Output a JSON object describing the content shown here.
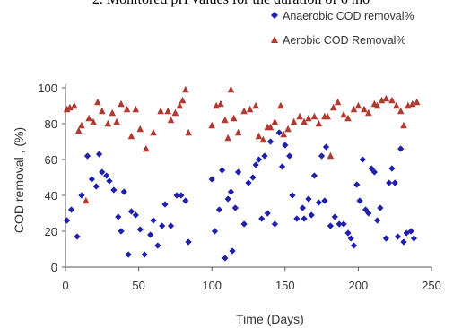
{
  "caption": "2. Monitored pH values for the duration of 6 mo",
  "chart_data": {
    "type": "scatter",
    "xlabel": "Time (Days)",
    "ylabel": "COD removal , (%)",
    "xlim": [
      0,
      250
    ],
    "ylim": [
      0,
      100
    ],
    "xticks": [
      0,
      50,
      100,
      150,
      200,
      250
    ],
    "yticks": [
      0,
      20,
      40,
      60,
      80,
      100
    ],
    "grid": false,
    "legend_position": "top-right",
    "series": [
      {
        "name": "Anaerobic COD removal%",
        "marker": "diamond",
        "color": "#1f1fae",
        "points": [
          [
            1,
            26
          ],
          [
            4,
            32
          ],
          [
            8,
            17
          ],
          [
            11,
            40
          ],
          [
            15,
            62
          ],
          [
            18,
            49
          ],
          [
            21,
            45
          ],
          [
            23,
            63
          ],
          [
            25,
            53
          ],
          [
            28,
            51
          ],
          [
            30,
            48
          ],
          [
            33,
            43
          ],
          [
            36,
            28
          ],
          [
            38,
            20
          ],
          [
            40,
            42
          ],
          [
            43,
            7
          ],
          [
            45,
            31
          ],
          [
            48,
            29
          ],
          [
            51,
            21
          ],
          [
            54,
            7
          ],
          [
            58,
            18
          ],
          [
            60,
            26
          ],
          [
            63,
            12
          ],
          [
            66,
            23
          ],
          [
            68,
            35
          ],
          [
            72,
            23
          ],
          [
            76,
            40
          ],
          [
            79,
            40
          ],
          [
            82,
            37
          ],
          [
            84,
            14
          ],
          [
            100,
            49
          ],
          [
            102,
            20
          ],
          [
            105,
            32
          ],
          [
            107,
            54
          ],
          [
            109,
            5
          ],
          [
            111,
            38
          ],
          [
            113,
            42
          ],
          [
            114,
            9
          ],
          [
            116,
            33
          ],
          [
            118,
            53
          ],
          [
            122,
            24
          ],
          [
            125,
            47
          ],
          [
            128,
            50
          ],
          [
            130,
            57
          ],
          [
            132,
            60
          ],
          [
            134,
            27
          ],
          [
            136,
            62
          ],
          [
            138,
            30
          ],
          [
            140,
            70
          ],
          [
            143,
            24
          ],
          [
            146,
            75
          ],
          [
            148,
            56
          ],
          [
            150,
            68
          ],
          [
            153,
            62
          ],
          [
            155,
            40
          ],
          [
            158,
            27
          ],
          [
            162,
            33
          ],
          [
            163,
            27
          ],
          [
            166,
            38
          ],
          [
            168,
            29
          ],
          [
            170,
            51
          ],
          [
            173,
            36
          ],
          [
            175,
            62
          ],
          [
            177,
            37
          ],
          [
            178,
            67
          ],
          [
            181,
            23
          ],
          [
            184,
            28
          ],
          [
            187,
            24
          ],
          [
            190,
            24
          ],
          [
            193,
            19
          ],
          [
            195,
            16
          ],
          [
            197,
            12
          ],
          [
            199,
            46
          ],
          [
            201,
            37
          ],
          [
            203,
            60
          ],
          [
            205,
            32
          ],
          [
            207,
            30
          ],
          [
            209,
            55
          ],
          [
            211,
            53
          ],
          [
            213,
            26
          ],
          [
            215,
            33
          ],
          [
            219,
            16
          ],
          [
            221,
            47
          ],
          [
            223,
            55
          ],
          [
            225,
            47
          ],
          [
            227,
            17
          ],
          [
            229,
            66
          ],
          [
            231,
            14
          ],
          [
            233,
            19
          ],
          [
            236,
            20
          ],
          [
            238,
            16
          ]
        ]
      },
      {
        "name": "Aerobic COD Removal%",
        "marker": "triangle",
        "color": "#b03a30",
        "points": [
          [
            1,
            88
          ],
          [
            3,
            89
          ],
          [
            6,
            90
          ],
          [
            9,
            76
          ],
          [
            11,
            79
          ],
          [
            14,
            37
          ],
          [
            16,
            83
          ],
          [
            19,
            81
          ],
          [
            22,
            92
          ],
          [
            25,
            87
          ],
          [
            29,
            80
          ],
          [
            32,
            86
          ],
          [
            35,
            81
          ],
          [
            38,
            91
          ],
          [
            42,
            88
          ],
          [
            45,
            73
          ],
          [
            48,
            88
          ],
          [
            51,
            77
          ],
          [
            55,
            66
          ],
          [
            60,
            75
          ],
          [
            65,
            87
          ],
          [
            70,
            87
          ],
          [
            72,
            82
          ],
          [
            75,
            86
          ],
          [
            78,
            90
          ],
          [
            80,
            93
          ],
          [
            82,
            99
          ],
          [
            84,
            75
          ],
          [
            100,
            79
          ],
          [
            103,
            90
          ],
          [
            106,
            91
          ],
          [
            109,
            82
          ],
          [
            111,
            72
          ],
          [
            113,
            99
          ],
          [
            115,
            83
          ],
          [
            118,
            75
          ],
          [
            122,
            87
          ],
          [
            126,
            88
          ],
          [
            130,
            90
          ],
          [
            132,
            73
          ],
          [
            135,
            71
          ],
          [
            138,
            78
          ],
          [
            140,
            78
          ],
          [
            143,
            81
          ],
          [
            147,
            90
          ],
          [
            149,
            74
          ],
          [
            152,
            77
          ],
          [
            156,
            81
          ],
          [
            160,
            84
          ],
          [
            163,
            81
          ],
          [
            166,
            83
          ],
          [
            170,
            84
          ],
          [
            173,
            80
          ],
          [
            177,
            84
          ],
          [
            179,
            84
          ],
          [
            181,
            62
          ],
          [
            183,
            89
          ],
          [
            186,
            92
          ],
          [
            190,
            85
          ],
          [
            193,
            83
          ],
          [
            197,
            88
          ],
          [
            200,
            90
          ],
          [
            204,
            88
          ],
          [
            207,
            86
          ],
          [
            211,
            91
          ],
          [
            213,
            90
          ],
          [
            216,
            93
          ],
          [
            219,
            94
          ],
          [
            223,
            93
          ],
          [
            226,
            90
          ],
          [
            229,
            87
          ],
          [
            231,
            79
          ],
          [
            234,
            90
          ],
          [
            237,
            91
          ],
          [
            240,
            92
          ]
        ]
      }
    ]
  }
}
